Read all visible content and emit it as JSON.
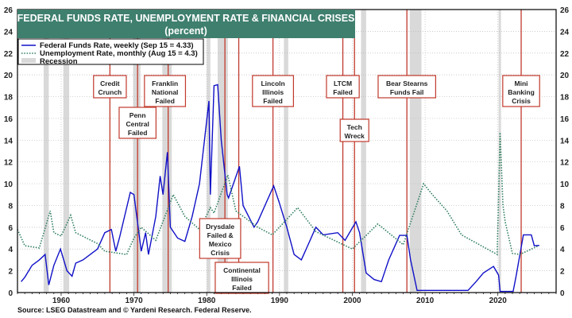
{
  "chart_data": {
    "type": "line",
    "title": "FEDERAL FUNDS RATE, UNEMPLOYMENT RATE & FINANCIAL CRISES",
    "subtitle": "(percent)",
    "xlabel": "",
    "ylabel": "",
    "xlim": [
      1954,
      2028
    ],
    "ylim": [
      0,
      26
    ],
    "x_ticks": [
      1960,
      1970,
      1980,
      1990,
      2000,
      2010,
      2020
    ],
    "y_ticks": [
      0,
      2,
      4,
      6,
      8,
      10,
      12,
      14,
      16,
      18,
      20,
      22,
      24,
      26
    ],
    "grid": true,
    "legend_position": "top-left",
    "legend": [
      "Federal Funds Rate, weekly (Sep 15 = 4.33)",
      "Unemployment Rate, monthly (Aug 15 = 4.3)",
      "Recession"
    ],
    "series": [
      {
        "name": "Federal Funds Rate, weekly",
        "color": "#1010c8",
        "style": "solid",
        "x": [
          1954.5,
          1955,
          1956,
          1957,
          1957.8,
          1958.3,
          1959,
          1959.9,
          1960.8,
          1961.5,
          1962,
          1963,
          1964,
          1965,
          1966,
          1966.9,
          1967.5,
          1968,
          1969.5,
          1970,
          1971,
          1971.6,
          1972,
          1973,
          1973.6,
          1974,
          1974.6,
          1975,
          1976,
          1977,
          1978,
          1979,
          1980.3,
          1980.5,
          1981,
          1981.5,
          1982,
          1982.8,
          1983,
          1984.5,
          1985,
          1986.5,
          1987,
          1989.2,
          1990,
          1991,
          1992,
          1993,
          1994,
          1995,
          1996,
          1998,
          1999,
          2000.5,
          2001,
          2001.9,
          2003,
          2004,
          2005,
          2006.5,
          2007.5,
          2008,
          2008.9,
          2015.9,
          2017,
          2018,
          2019.4,
          2020.1,
          2020.3,
          2022.1,
          2022.5,
          2023.5,
          2024.6,
          2025,
          2025.7
        ],
        "values": [
          1.0,
          1.4,
          2.5,
          3.0,
          3.5,
          0.7,
          2.5,
          4.0,
          2.0,
          1.5,
          2.7,
          3.0,
          3.5,
          4.0,
          5.5,
          5.8,
          3.8,
          5.0,
          9.2,
          9.0,
          3.8,
          5.5,
          3.5,
          7.0,
          10.7,
          9.0,
          12.9,
          6.0,
          5.0,
          4.7,
          7.0,
          10.0,
          17.6,
          9.0,
          19.0,
          19.1,
          14.0,
          9.0,
          8.7,
          11.6,
          8.0,
          6.0,
          6.5,
          9.8,
          8.2,
          6.0,
          3.5,
          3.0,
          4.5,
          6.0,
          5.3,
          5.5,
          4.8,
          6.5,
          5.5,
          1.8,
          1.2,
          1.0,
          3.0,
          5.25,
          5.25,
          3.0,
          0.2,
          0.2,
          1.0,
          1.8,
          2.4,
          1.6,
          0.1,
          0.1,
          1.5,
          5.3,
          5.3,
          4.3,
          4.33
        ]
      },
      {
        "name": "Unemployment Rate, monthly",
        "color": "#2e7d5e",
        "style": "dotted",
        "x": [
          1954,
          1955,
          1957,
          1958.5,
          1959,
          1960,
          1961.3,
          1962,
          1965,
          1966,
          1969,
          1970,
          1971,
          1973,
          1975.4,
          1977,
          1979,
          1980.5,
          1981,
          1982.9,
          1984,
          1987,
          1989,
          1992.5,
          1995,
          2000,
          2003.5,
          2007,
          2009.8,
          2011,
          2013,
          2015,
          2019.9,
          2020.3,
          2020.7,
          2021,
          2022,
          2023,
          2025.6
        ],
        "values": [
          5.8,
          4.3,
          4.1,
          7.5,
          5.5,
          5.2,
          7.1,
          5.5,
          4.5,
          3.8,
          3.5,
          5.0,
          6.0,
          4.8,
          9.0,
          7.0,
          5.8,
          7.8,
          7.3,
          10.8,
          7.5,
          6.0,
          5.3,
          7.8,
          5.6,
          4.0,
          6.3,
          4.4,
          10.0,
          9.0,
          7.5,
          5.3,
          3.5,
          14.7,
          8.0,
          6.5,
          3.6,
          3.5,
          4.3
        ]
      }
    ],
    "recessions": [
      [
        1957.6,
        1958.3
      ],
      [
        1960.3,
        1961.1
      ],
      [
        1969.9,
        1970.9
      ],
      [
        1973.9,
        1975.2
      ],
      [
        1980.0,
        1980.5
      ],
      [
        1981.5,
        1982.9
      ],
      [
        1990.6,
        1991.2
      ],
      [
        2001.2,
        2001.9
      ],
      [
        2007.9,
        2009.5
      ],
      [
        2020.1,
        2020.3
      ]
    ],
    "annotations": [
      {
        "year": 1966.7,
        "lines": [
          "Credit",
          "Crunch"
        ]
      },
      {
        "year": 1970.5,
        "lines": [
          "Penn",
          "Central",
          "Failed"
        ]
      },
      {
        "year": 1974.7,
        "lines": [
          "Franklin",
          "National",
          "Failed"
        ]
      },
      {
        "year": 1982.5,
        "lines": [
          "Drysdale",
          "Failed &",
          "Mexico",
          "Crisis"
        ]
      },
      {
        "year": 1984.4,
        "lines": [
          "Continental",
          "Illinois",
          "Failed"
        ]
      },
      {
        "year": 1989.1,
        "lines": [
          "Lincoln",
          "Illinois",
          "Failed"
        ]
      },
      {
        "year": 1998.7,
        "lines": [
          "LTCM",
          "Failed"
        ]
      },
      {
        "year": 2000.3,
        "lines": [
          "Tech",
          "Wreck"
        ]
      },
      {
        "year": 2007.5,
        "lines": [
          "Bear Stearns",
          "Funds Fail"
        ]
      },
      {
        "year": 2023.2,
        "lines": [
          "Mini",
          "Banking",
          "Crisis"
        ]
      }
    ],
    "source": "Source: LSEG Datastream and © Yardeni Research. Federal Reserve."
  }
}
